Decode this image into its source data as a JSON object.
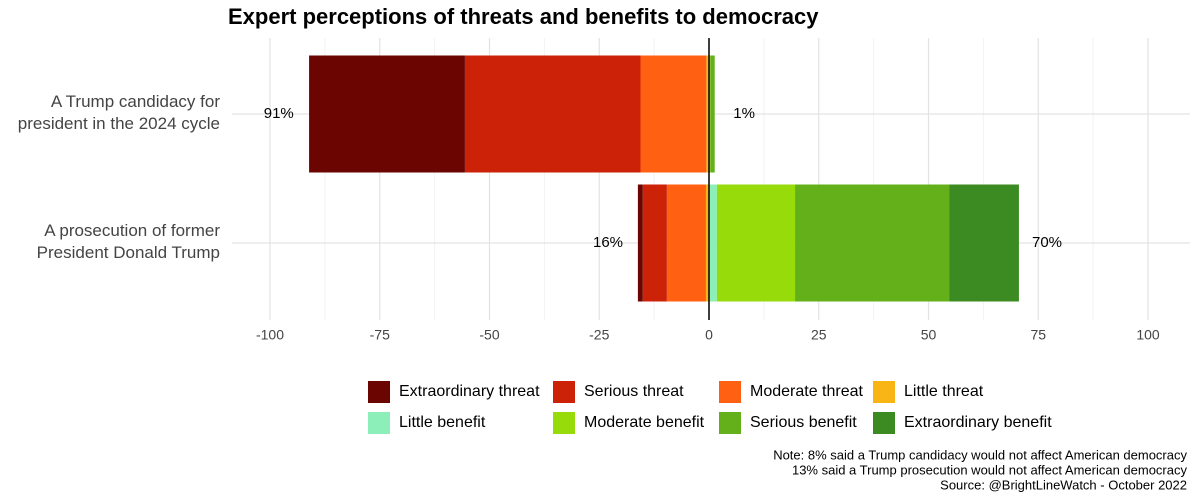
{
  "chart_data": {
    "type": "diverging_bar",
    "title": "Expert perceptions of threats and benefits to democracy",
    "categories": [
      "A Trump candidacy for\npresident in the 2024 cycle",
      "A prosecution of former\nPresident Donald Trump"
    ],
    "series": [
      {
        "name": "Extraordinary threat",
        "color": "#6b0502",
        "values": [
          -35.5,
          -1.1
        ]
      },
      {
        "name": "Serious threat",
        "color": "#cc2208",
        "values": [
          -40,
          -5.5
        ]
      },
      {
        "name": "Moderate threat",
        "color": "#ff6011",
        "values": [
          -15,
          -8.9
        ]
      },
      {
        "name": "Little threat",
        "color": "#f9b515",
        "values": [
          -0.6,
          -0.7
        ]
      },
      {
        "name": "Little benefit",
        "color": "#8ceeb8",
        "values": [
          0,
          1.8
        ]
      },
      {
        "name": "Moderate benefit",
        "color": "#97dc0a",
        "values": [
          0.3,
          17.8
        ]
      },
      {
        "name": "Serious benefit",
        "color": "#63b01a",
        "values": [
          1,
          35.1
        ]
      },
      {
        "name": "Extraordinary benefit",
        "color": "#3c8a22",
        "values": [
          0,
          15.9
        ]
      }
    ],
    "threat_totals": [
      91,
      16
    ],
    "threat_total_labels": [
      "91%",
      "16%"
    ],
    "benefit_totals": [
      1,
      70
    ],
    "benefit_total_labels": [
      "1%",
      "70%"
    ],
    "xlim": [
      -100,
      100
    ],
    "xticks": [
      -100,
      -75,
      -50,
      -25,
      0,
      25,
      50,
      75,
      100
    ],
    "xminor": [
      -87.5,
      -62.5,
      -37.5,
      -12.5,
      12.5,
      37.5,
      62.5,
      87.5
    ],
    "grid": true,
    "notes": [
      "Note: 8% said a Trump candidacy would not affect American democracy",
      "13% said a Trump prosecution would not affect American democracy",
      "Source: @BrightLineWatch - October 2022"
    ]
  }
}
